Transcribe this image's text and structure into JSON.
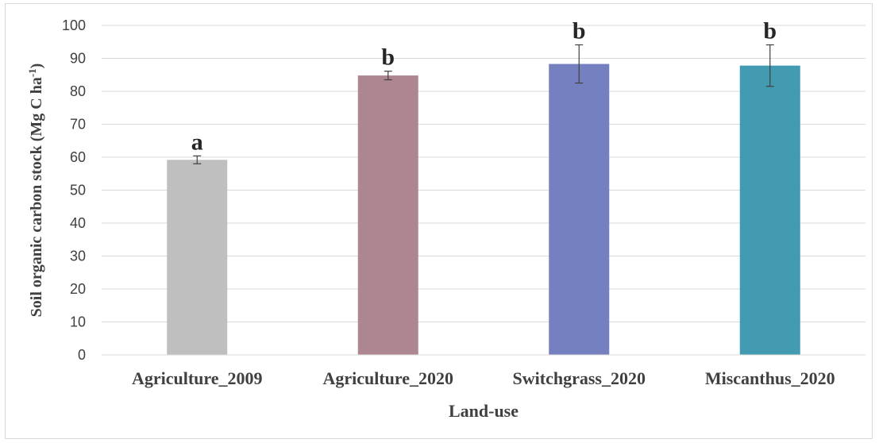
{
  "chart_data": {
    "type": "bar",
    "categories": [
      "Agriculture_2009",
      "Agriculture_2020",
      "Switchgrass_2020",
      "Miscanthus_2020"
    ],
    "values": [
      59.2,
      84.8,
      88.3,
      87.8
    ],
    "error": [
      1.2,
      1.3,
      5.8,
      6.3
    ],
    "significance": [
      "a",
      "b",
      "b",
      "b"
    ],
    "colors": [
      "#bfbfbf",
      "#ad8690",
      "#7480bf",
      "#439bb1"
    ],
    "xlabel": "Land-use",
    "ylabel": {
      "prefix": "Soil organic carbon stock (Mg C ha",
      "superscript": "-1",
      "suffix": ")"
    },
    "ylim": [
      0,
      100
    ],
    "yticks": [
      "0",
      "10",
      "20",
      "30",
      "40",
      "50",
      "60",
      "70",
      "80",
      "90",
      "100"
    ],
    "grid": true,
    "legend": "none"
  }
}
